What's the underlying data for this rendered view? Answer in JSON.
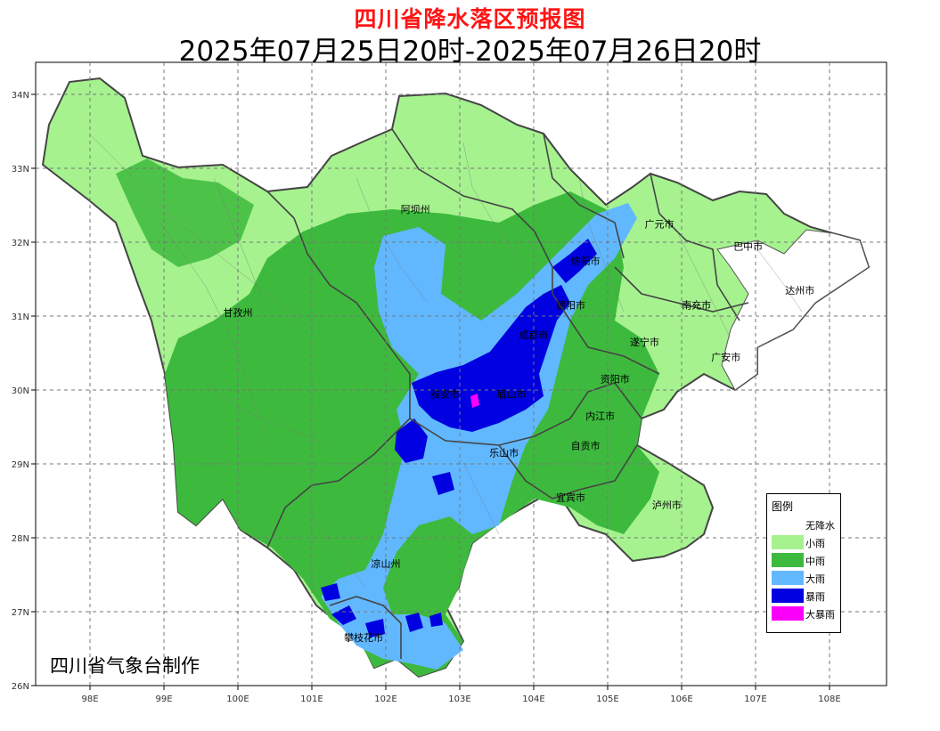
{
  "header": {
    "title": "四川省降水落区预报图",
    "subtitle": "2025年07月25日20时-2025年07月26日20时"
  },
  "credit": "四川省气象台制作",
  "axes": {
    "lat_labels": [
      "26N",
      "27N",
      "28N",
      "29N",
      "30N",
      "31N",
      "32N",
      "33N",
      "34N"
    ],
    "lat_values": [
      26,
      27,
      28,
      29,
      30,
      31,
      32,
      33,
      34
    ],
    "lon_labels": [
      "98E",
      "99E",
      "100E",
      "101E",
      "102E",
      "103E",
      "104E",
      "105E",
      "106E",
      "107E",
      "108E"
    ],
    "lon_values": [
      98,
      99,
      100,
      101,
      102,
      103,
      104,
      105,
      106,
      107,
      108
    ]
  },
  "legend": {
    "title": "图例",
    "items": [
      {
        "label": "无降水",
        "color": "#ffffff"
      },
      {
        "label": "小雨",
        "color": "#a6f28f"
      },
      {
        "label": "中雨",
        "color": "#3dba3d"
      },
      {
        "label": "大雨",
        "color": "#61b8ff"
      },
      {
        "label": "暴雨",
        "color": "#0000e1"
      },
      {
        "label": "大暴雨",
        "color": "#fa00fa"
      }
    ]
  },
  "cities": [
    {
      "name": "阿坝州",
      "lon": 102.4,
      "lat": 32.4
    },
    {
      "name": "甘孜州",
      "lon": 100.0,
      "lat": 31.0
    },
    {
      "name": "广元市",
      "lon": 105.7,
      "lat": 32.2
    },
    {
      "name": "巴中市",
      "lon": 106.9,
      "lat": 31.9
    },
    {
      "name": "绵阳市",
      "lon": 104.7,
      "lat": 31.7
    },
    {
      "name": "达州市",
      "lon": 107.6,
      "lat": 31.3
    },
    {
      "name": "德阳市",
      "lon": 104.5,
      "lat": 31.1
    },
    {
      "name": "南充市",
      "lon": 106.2,
      "lat": 31.1
    },
    {
      "name": "成都市",
      "lon": 104.0,
      "lat": 30.7
    },
    {
      "name": "遂宁市",
      "lon": 105.5,
      "lat": 30.6
    },
    {
      "name": "广安市",
      "lon": 106.6,
      "lat": 30.4
    },
    {
      "name": "资阳市",
      "lon": 105.1,
      "lat": 30.1
    },
    {
      "name": "雅安市",
      "lon": 102.8,
      "lat": 29.9
    },
    {
      "name": "眉山市",
      "lon": 103.7,
      "lat": 29.9
    },
    {
      "name": "内江市",
      "lon": 104.9,
      "lat": 29.6
    },
    {
      "name": "乐山市",
      "lon": 103.6,
      "lat": 29.1
    },
    {
      "name": "自贡市",
      "lon": 104.7,
      "lat": 29.2
    },
    {
      "name": "宜宾市",
      "lon": 104.5,
      "lat": 28.5
    },
    {
      "name": "泸州市",
      "lon": 105.8,
      "lat": 28.4
    },
    {
      "name": "凉山州",
      "lon": 102.0,
      "lat": 27.6
    },
    {
      "name": "攀枝花市",
      "lon": 101.7,
      "lat": 26.6
    }
  ]
}
